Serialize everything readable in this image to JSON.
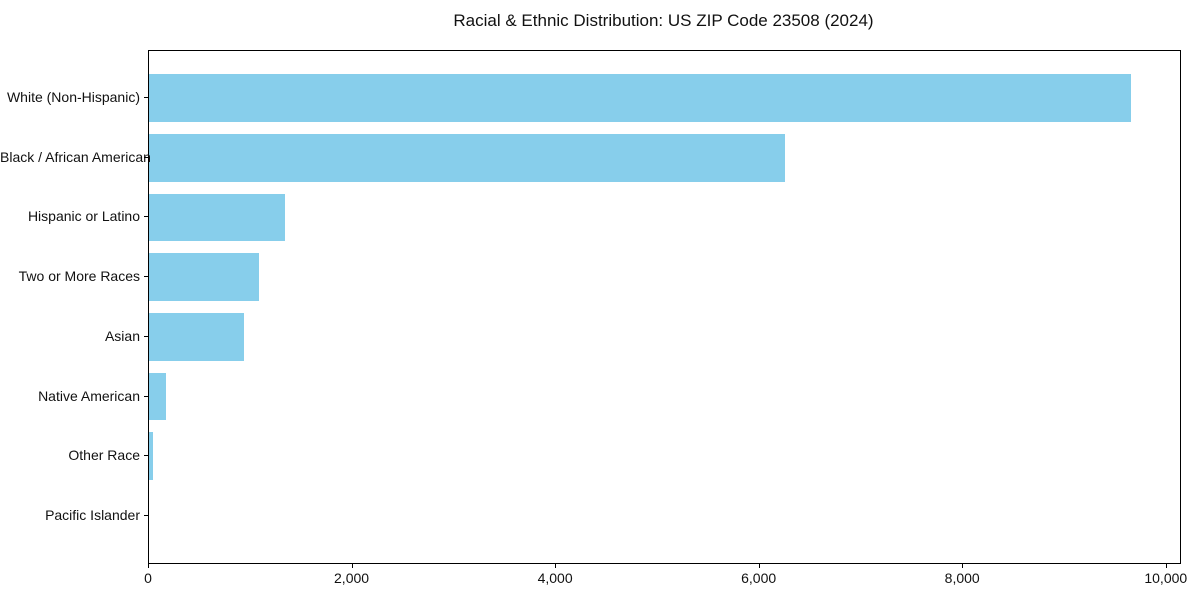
{
  "chart_data": {
    "type": "bar",
    "orientation": "horizontal",
    "title": "Racial & Ethnic Distribution: US ZIP Code 23508 (2024)",
    "categories": [
      "White (Non-Hispanic)",
      "Black / African American",
      "Hispanic or Latino",
      "Two or More Races",
      "Asian",
      "Native American",
      "Other Race",
      "Pacific Islander"
    ],
    "values": [
      9650,
      6250,
      1340,
      1080,
      930,
      170,
      40,
      0
    ],
    "xlabel": "",
    "ylabel": "",
    "xlim": [
      0,
      10130
    ],
    "x_ticks": [
      0,
      2000,
      4000,
      6000,
      8000,
      10000
    ],
    "x_tick_labels": [
      "0",
      "2,000",
      "4,000",
      "6,000",
      "8,000",
      "10,000"
    ],
    "bar_color": "#87CEEB",
    "frame_color": "#000000",
    "grid": false,
    "legend": null
  }
}
